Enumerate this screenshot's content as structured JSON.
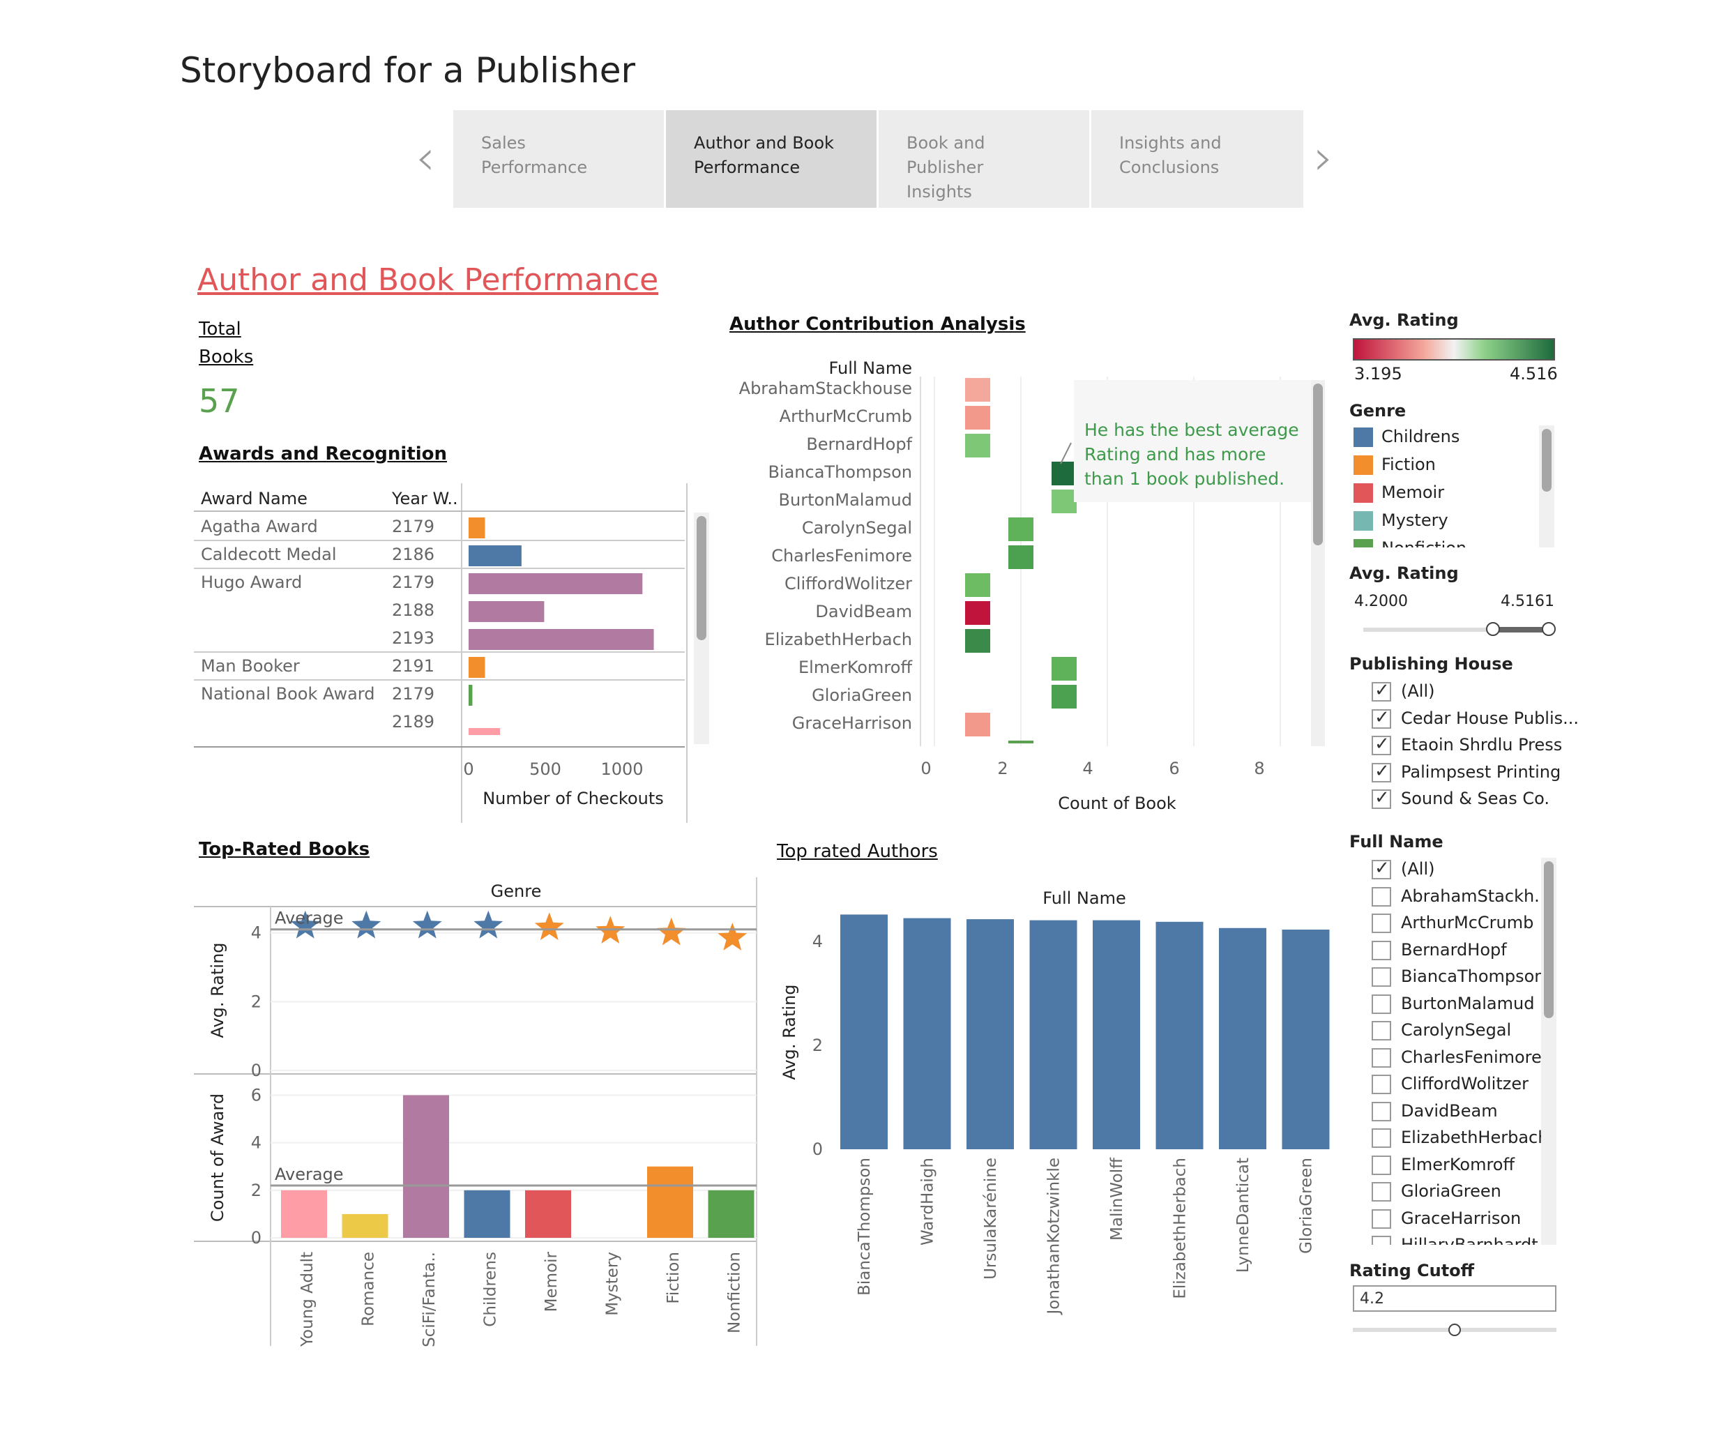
{
  "page": {
    "title": "Storyboard for a Publisher"
  },
  "tabs": [
    {
      "label": "Sales Performance",
      "active": false
    },
    {
      "label": "Author and Book\nPerformance",
      "active": true
    },
    {
      "label": "Book and Publisher\nInsights",
      "active": false
    },
    {
      "label": "Insights and\nConclusions",
      "active": false
    }
  ],
  "section_title": "Author and Book Performance",
  "total_books": {
    "label_line1": "Total",
    "label_line2": "Books",
    "value": "57"
  },
  "awards": {
    "title": "Awards and Recognition",
    "col_award": "Award Name",
    "col_year": "Year W..",
    "rows": [
      {
        "award": "Agatha Award",
        "year": "2179"
      },
      {
        "award": "Caldecott Medal",
        "year": "2186"
      },
      {
        "award": "Hugo Award",
        "year": "2179"
      },
      {
        "award": "",
        "year": "2188"
      },
      {
        "award": "",
        "year": "2193"
      },
      {
        "award": "Man Booker",
        "year": "2191"
      },
      {
        "award": "National Book Award",
        "year": "2179"
      },
      {
        "award": "",
        "year": "2189"
      }
    ],
    "axis_label": "Number of Checkouts",
    "ticks": [
      "0",
      "500",
      "1000"
    ]
  },
  "author_contrib": {
    "title": "Author Contribution Analysis",
    "col_header": "Full Name",
    "axis_label": "Count of Book",
    "ticks": [
      "0",
      "2",
      "4",
      "6",
      "8"
    ],
    "annotation": "He has the best average\nRating and has more\nthan 1 book published."
  },
  "top_rated_books": {
    "title": "Top-Rated Books",
    "genre_header": "Genre",
    "ylabel_top": "Avg. Rating",
    "ylabel_bottom": "Count of Award",
    "avg_label": "Average",
    "ticks_top": [
      "4",
      "2",
      "0"
    ],
    "ticks_bottom": [
      "6",
      "4",
      "2",
      "0"
    ]
  },
  "top_rated_authors": {
    "title": "Top rated Authors",
    "header": "Full Name",
    "ylabel": "Avg. Rating",
    "ticks": [
      "4",
      "2",
      "0"
    ]
  },
  "legend": {
    "avg_rating_title": "Avg. Rating",
    "avg_rating_min": "3.195",
    "avg_rating_max": "4.516",
    "genre_title": "Genre",
    "genres": [
      {
        "name": "Childrens",
        "color": "#4e79a7"
      },
      {
        "name": "Fiction",
        "color": "#f28e2b"
      },
      {
        "name": "Memoir",
        "color": "#e15759"
      },
      {
        "name": "Mystery",
        "color": "#76b7b2"
      },
      {
        "name": "Nonfiction",
        "color": "#59a14f"
      }
    ]
  },
  "filters": {
    "rating_range_title": "Avg. Rating",
    "rating_range_min": "4.2000",
    "rating_range_max": "4.5161",
    "publishing_title": "Publishing House",
    "publishing": [
      {
        "label": "(All)",
        "checked": true
      },
      {
        "label": "Cedar House Publis...",
        "checked": true
      },
      {
        "label": "Etaoin Shrdlu Press",
        "checked": true
      },
      {
        "label": "Palimpsest Printing",
        "checked": true
      },
      {
        "label": "Sound & Seas Co.",
        "checked": true
      }
    ],
    "fullname_title": "Full Name",
    "fullnames": [
      {
        "label": "(All)",
        "checked": true
      },
      {
        "label": "AbrahamStackh...",
        "checked": false
      },
      {
        "label": "ArthurMcCrumb",
        "checked": false
      },
      {
        "label": "BernardHopf",
        "checked": false
      },
      {
        "label": "BiancaThompson",
        "checked": false
      },
      {
        "label": "BurtonMalamud",
        "checked": false
      },
      {
        "label": "CarolynSegal",
        "checked": false
      },
      {
        "label": "CharlesFenimore",
        "checked": false
      },
      {
        "label": "CliffordWolitzer",
        "checked": false
      },
      {
        "label": "DavidBeam",
        "checked": false
      },
      {
        "label": "ElizabethHerbach",
        "checked": false
      },
      {
        "label": "ElmerKomroff",
        "checked": false
      },
      {
        "label": "GloriaGreen",
        "checked": false
      },
      {
        "label": "GraceHarrison",
        "checked": false
      },
      {
        "label": "HillaryBarnhardt",
        "checked": false
      }
    ],
    "rating_cutoff_title": "Rating Cutoff",
    "rating_cutoff_value": "4.2",
    "rating_cutoff_level": 0.5
  },
  "chart_data": [
    {
      "id": "awards",
      "type": "bar",
      "orientation": "horizontal",
      "xlabel": "Number of Checkouts",
      "categories": [
        "Agatha Award 2179",
        "Caldecott Medal 2186",
        "Hugo Award 2179",
        "Hugo Award 2188",
        "Hugo Award 2193",
        "Man Booker 2191",
        "National Book Award 2179",
        "National Book Award 2189"
      ],
      "values": [
        130,
        420,
        1380,
        600,
        1470,
        130,
        30,
        250
      ],
      "colors": [
        "#f28e2b",
        "#4e79a7",
        "#b07aa1",
        "#b07aa1",
        "#b07aa1",
        "#f28e2b",
        "#59a14f",
        "#ff9da7"
      ],
      "xlim": [
        0,
        1550
      ]
    },
    {
      "id": "author_contribution",
      "type": "scatter",
      "xlabel": "Count of Book",
      "ylabel": "Full Name",
      "xlim": [
        0,
        9
      ],
      "points": [
        {
          "name": "AbrahamStackhouse",
          "count": 1,
          "color": "#f4a79b"
        },
        {
          "name": "ArthurMcCrumb",
          "count": 1,
          "color": "#f3998b"
        },
        {
          "name": "BernardHopf",
          "count": 1,
          "color": "#7dc777"
        },
        {
          "name": "BiancaThompson",
          "count": 3,
          "color": "#1e6b3d"
        },
        {
          "name": "BurtonMalamud",
          "count": 3,
          "color": "#7dc777"
        },
        {
          "name": "CarolynSegal",
          "count": 2,
          "color": "#5fb25a"
        },
        {
          "name": "CharlesFenimore",
          "count": 2,
          "color": "#4ba14f"
        },
        {
          "name": "CliffordWolitzer",
          "count": 1,
          "color": "#6dbb63"
        },
        {
          "name": "DavidBeam",
          "count": 1,
          "color": "#c0143c"
        },
        {
          "name": "ElizabethHerbach",
          "count": 1,
          "color": "#3b8a4a"
        },
        {
          "name": "ElmerKomroff",
          "count": 3,
          "color": "#5fb25a"
        },
        {
          "name": "GloriaGreen",
          "count": 3,
          "color": "#4ba14f"
        },
        {
          "name": "GraceHarrison",
          "count": 1,
          "color": "#f3998b"
        }
      ]
    },
    {
      "id": "top_rated_books_rating",
      "type": "scatter",
      "ylabel": "Avg. Rating",
      "categories": [
        "Young Adult",
        "Romance",
        "SciFi/Fanta..",
        "Childrens",
        "Memoir",
        "Mystery",
        "Fiction",
        "Nonfiction"
      ],
      "stars": [
        {
          "y": 4.2,
          "color": "#4e79a7"
        },
        {
          "y": 4.2,
          "color": "#4e79a7"
        },
        {
          "y": 4.2,
          "color": "#4e79a7"
        },
        {
          "y": 4.2,
          "color": "#4e79a7"
        },
        {
          "y": 4.15,
          "color": "#f28e2b"
        },
        {
          "y": 4.05,
          "color": "#f28e2b"
        },
        {
          "y": 4.0,
          "color": "#f28e2b"
        },
        {
          "y": 3.85,
          "color": "#f28e2b"
        }
      ],
      "average": 4.1,
      "ylim": [
        0,
        4.5
      ]
    },
    {
      "id": "top_rated_books_awards",
      "type": "bar",
      "ylabel": "Count of Award",
      "categories": [
        "Young Adult",
        "Romance",
        "SciFi/Fanta..",
        "Childrens",
        "Memoir",
        "Mystery",
        "Fiction",
        "Nonfiction"
      ],
      "values": [
        2,
        1,
        6,
        2,
        2,
        0,
        3,
        2
      ],
      "colors": [
        "#ff9da7",
        "#edc948",
        "#b07aa1",
        "#4e79a7",
        "#e15759",
        "#76b7b2",
        "#f28e2b",
        "#59a14f"
      ],
      "average": 2.2,
      "ylim": [
        0,
        6.6
      ]
    },
    {
      "id": "top_rated_authors",
      "type": "bar",
      "xlabel": "Full Name",
      "ylabel": "Avg. Rating",
      "categories": [
        "BiancaThompson",
        "WardHaigh",
        "UrsulaKarénine",
        "JonathanKotzwinkle",
        "MalinWolff",
        "ElizabethHerbach",
        "LynneDanticat",
        "GloriaGreen"
      ],
      "values": [
        4.52,
        4.45,
        4.43,
        4.41,
        4.41,
        4.38,
        4.26,
        4.23
      ],
      "color": "#4e79a7",
      "ylim": [
        0,
        4.7
      ]
    }
  ]
}
